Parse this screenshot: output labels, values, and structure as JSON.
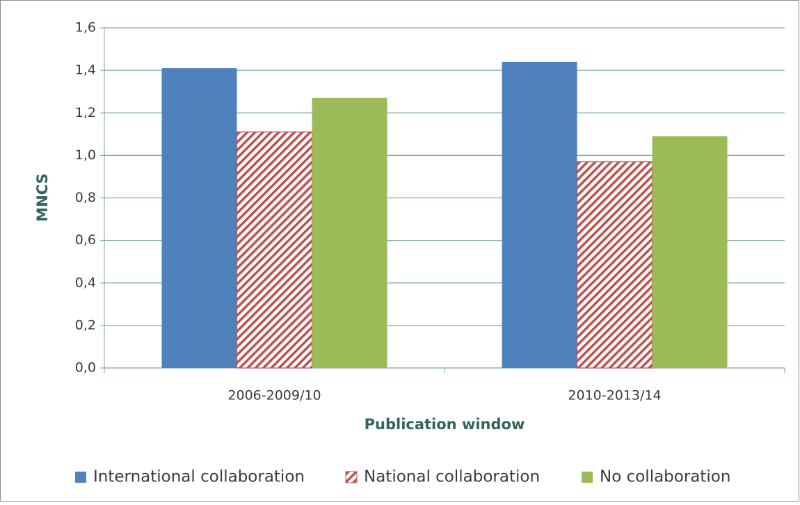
{
  "chart_data": {
    "type": "bar",
    "x_label": "Publication window",
    "y_label": "MNCS",
    "categories": [
      "2006-2009/10",
      "2010-2013/14"
    ],
    "series": [
      {
        "name": "International collaboration",
        "color": "#4f81bd",
        "values": [
          1.41,
          1.44
        ]
      },
      {
        "name": "National collaboration",
        "color": "#c0504d",
        "pattern": "hatch",
        "values": [
          1.11,
          0.97
        ]
      },
      {
        "name": "No collaboration",
        "color": "#9bbb59",
        "values": [
          1.27,
          1.09
        ]
      }
    ],
    "ylim": [
      0,
      1.6
    ],
    "yticks": [
      {
        "value": 0,
        "label": "0,0"
      },
      {
        "value": 0.2,
        "label": "0,2"
      },
      {
        "value": 0.4,
        "label": "0,4"
      },
      {
        "value": 0.6,
        "label": "0,6"
      },
      {
        "value": 0.8,
        "label": "0,8"
      },
      {
        "value": 1.0,
        "label": "1,0"
      },
      {
        "value": 1.2,
        "label": "1,2"
      },
      {
        "value": 1.4,
        "label": "1,4"
      },
      {
        "value": 1.6,
        "label": "1,6"
      }
    ],
    "grid": true,
    "legend": "bottom"
  }
}
